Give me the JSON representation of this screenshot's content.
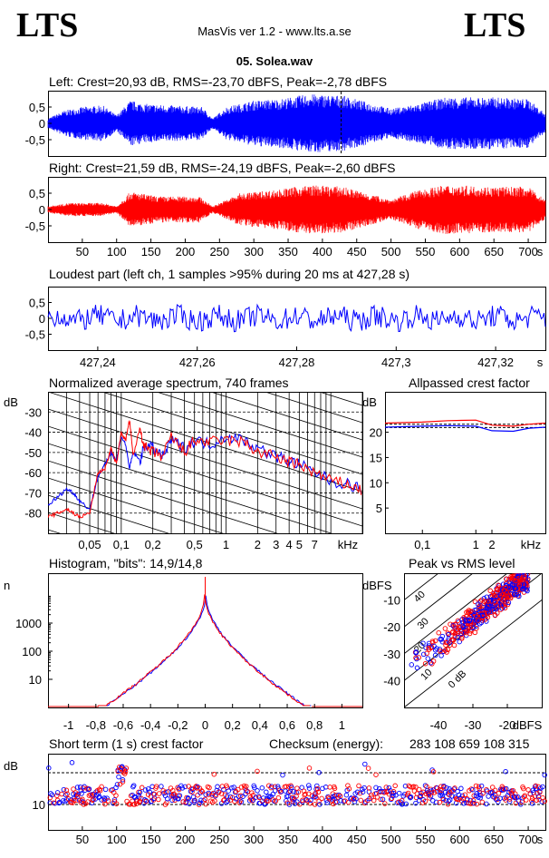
{
  "header": {
    "logo_left": "LTS",
    "logo_right": "LTS",
    "app_title": "MasVis ver 1.2 - www.lts.a.se",
    "file_title": "05. Solea.wav"
  },
  "colors": {
    "left": "#0000ff",
    "right": "#ff0000"
  },
  "chart_data": [
    {
      "id": "left",
      "type": "line",
      "title": "Left: Crest=20,93 dB, RMS=-23,70 dBFS, Peak=-2,78 dBFS",
      "ylim": [
        -1,
        1
      ],
      "yticks": [
        "0,5",
        "0",
        "-0,5"
      ],
      "ytick_values": [
        0.5,
        0,
        -0.5
      ],
      "x_range_s": [
        0,
        725
      ],
      "marker_s": 427.28,
      "envelope": [
        {
          "t": 0,
          "a": 0.15
        },
        {
          "t": 25,
          "a": 0.4
        },
        {
          "t": 50,
          "a": 0.5
        },
        {
          "t": 80,
          "a": 0.55
        },
        {
          "t": 100,
          "a": 0.25
        },
        {
          "t": 120,
          "a": 0.7
        },
        {
          "t": 140,
          "a": 0.6
        },
        {
          "t": 180,
          "a": 0.55
        },
        {
          "t": 225,
          "a": 0.5
        },
        {
          "t": 240,
          "a": 0.15
        },
        {
          "t": 260,
          "a": 0.5
        },
        {
          "t": 300,
          "a": 0.7
        },
        {
          "t": 340,
          "a": 0.75
        },
        {
          "t": 380,
          "a": 0.9
        },
        {
          "t": 430,
          "a": 0.85
        },
        {
          "t": 500,
          "a": 0.45
        },
        {
          "t": 540,
          "a": 0.6
        },
        {
          "t": 580,
          "a": 0.8
        },
        {
          "t": 650,
          "a": 0.8
        },
        {
          "t": 700,
          "a": 0.75
        },
        {
          "t": 725,
          "a": 0.3
        }
      ]
    },
    {
      "id": "right",
      "type": "line",
      "title": "Right: Crest=21,59 dB, RMS=-24,19 dBFS, Peak=-2,60 dBFS",
      "ylim": [
        -1,
        1
      ],
      "yticks": [
        "0,5",
        "0",
        "-0,5"
      ],
      "ytick_values": [
        0.5,
        0,
        -0.5
      ],
      "x_range_s": [
        0,
        725
      ],
      "xticks": [
        50,
        100,
        150,
        200,
        250,
        300,
        350,
        400,
        450,
        500,
        550,
        600,
        650,
        700
      ],
      "xtick_labels": [
        "50",
        "100",
        "150",
        "200",
        "250",
        "300",
        "350",
        "400",
        "450",
        "500",
        "550",
        "600",
        "650",
        "700"
      ],
      "x_unit": "s",
      "envelope": [
        {
          "t": 0,
          "a": 0.1
        },
        {
          "t": 30,
          "a": 0.2
        },
        {
          "t": 80,
          "a": 0.2
        },
        {
          "t": 100,
          "a": 0.1
        },
        {
          "t": 120,
          "a": 0.55
        },
        {
          "t": 160,
          "a": 0.4
        },
        {
          "t": 220,
          "a": 0.4
        },
        {
          "t": 240,
          "a": 0.1
        },
        {
          "t": 280,
          "a": 0.5
        },
        {
          "t": 330,
          "a": 0.6
        },
        {
          "t": 380,
          "a": 0.75
        },
        {
          "t": 430,
          "a": 0.7
        },
        {
          "t": 500,
          "a": 0.3
        },
        {
          "t": 540,
          "a": 0.6
        },
        {
          "t": 580,
          "a": 0.75
        },
        {
          "t": 650,
          "a": 0.7
        },
        {
          "t": 700,
          "a": 0.7
        },
        {
          "t": 725,
          "a": 0.3
        }
      ]
    },
    {
      "id": "loudest",
      "type": "line",
      "title": "Loudest part (left  ch, 1 samples >95% during 20 ms at 427,28 s)",
      "ylim": [
        -1,
        1
      ],
      "yticks": [
        "0,5",
        "0",
        "-0,5"
      ],
      "ytick_values": [
        0.5,
        0,
        -0.5
      ],
      "x_range_s": [
        427.23,
        427.33
      ],
      "xtick_labels": [
        "427,24",
        "427,26",
        "427,28",
        "427,3",
        "427,32"
      ],
      "xtick_values": [
        427.24,
        427.26,
        427.28,
        427.3,
        427.32
      ],
      "x_unit": "s",
      "amplitude": 0.35
    },
    {
      "id": "spectrum",
      "type": "line",
      "title": "Normalized average spectrum, 740 frames",
      "y_unit": "dB",
      "ylim": [
        -90,
        -20
      ],
      "yticks": [
        "-30",
        "-40",
        "-50",
        "-60",
        "-70",
        "-80"
      ],
      "ytick_values": [
        -30,
        -40,
        -50,
        -60,
        -70,
        -80
      ],
      "x_unit": "kHz",
      "xlim_khz": [
        0.02,
        20
      ],
      "xtick_labels": [
        "0,05",
        "0,1",
        "0,2",
        "0,5",
        "1",
        "2",
        "3",
        "4",
        "5",
        "7"
      ],
      "xtick_values": [
        0.05,
        0.1,
        0.2,
        0.5,
        1,
        2,
        3,
        4,
        5,
        7
      ],
      "series": [
        {
          "channel": "left",
          "points": [
            [
              0.02,
              -76
            ],
            [
              0.025,
              -72
            ],
            [
              0.03,
              -68
            ],
            [
              0.035,
              -70
            ],
            [
              0.04,
              -74
            ],
            [
              0.05,
              -78
            ],
            [
              0.06,
              -62
            ],
            [
              0.07,
              -56
            ],
            [
              0.08,
              -50
            ],
            [
              0.09,
              -54
            ],
            [
              0.1,
              -42
            ],
            [
              0.11,
              -46
            ],
            [
              0.12,
              -58
            ],
            [
              0.13,
              -50
            ],
            [
              0.15,
              -54
            ],
            [
              0.17,
              -46
            ],
            [
              0.2,
              -48
            ],
            [
              0.25,
              -52
            ],
            [
              0.3,
              -44
            ],
            [
              0.4,
              -48
            ],
            [
              0.5,
              -44
            ],
            [
              0.7,
              -46
            ],
            [
              1,
              -42
            ],
            [
              1.5,
              -44
            ],
            [
              2,
              -48
            ],
            [
              3,
              -52
            ],
            [
              4,
              -54
            ],
            [
              5,
              -56
            ],
            [
              7,
              -60
            ],
            [
              10,
              -64
            ],
            [
              15,
              -66
            ],
            [
              20,
              -68
            ]
          ]
        },
        {
          "channel": "right",
          "points": [
            [
              0.02,
              -82
            ],
            [
              0.025,
              -80
            ],
            [
              0.03,
              -78
            ],
            [
              0.035,
              -80
            ],
            [
              0.04,
              -82
            ],
            [
              0.05,
              -80
            ],
            [
              0.06,
              -60
            ],
            [
              0.07,
              -58
            ],
            [
              0.08,
              -48
            ],
            [
              0.09,
              -56
            ],
            [
              0.1,
              -40
            ],
            [
              0.11,
              -44
            ],
            [
              0.12,
              -34
            ],
            [
              0.13,
              -52
            ],
            [
              0.15,
              -38
            ],
            [
              0.17,
              -48
            ],
            [
              0.2,
              -50
            ],
            [
              0.25,
              -52
            ],
            [
              0.3,
              -42
            ],
            [
              0.4,
              -50
            ],
            [
              0.5,
              -44
            ],
            [
              0.7,
              -45
            ],
            [
              1,
              -44
            ],
            [
              1.5,
              -45
            ],
            [
              2,
              -50
            ],
            [
              3,
              -52
            ],
            [
              4,
              -55
            ],
            [
              5,
              -56
            ],
            [
              7,
              -60
            ],
            [
              10,
              -64
            ],
            [
              15,
              -66
            ],
            [
              20,
              -69
            ]
          ]
        }
      ]
    },
    {
      "id": "allpassed",
      "type": "line",
      "title": "Allpassed crest factor",
      "y_unit": "dB",
      "ylim": [
        0,
        28
      ],
      "yticks": [
        "20",
        "15",
        "10",
        "5"
      ],
      "ytick_values": [
        20,
        15,
        10,
        5
      ],
      "x_unit": "kHz",
      "xlim_khz": [
        0.02,
        20
      ],
      "xtick_labels": [
        "0,1",
        "1",
        "2"
      ],
      "xtick_values": [
        0.1,
        1,
        2
      ],
      "series": [
        {
          "channel": "left",
          "points": [
            [
              0.02,
              21.0
            ],
            [
              0.1,
              21.2
            ],
            [
              0.3,
              21.3
            ],
            [
              1,
              21.2
            ],
            [
              2,
              20.3
            ],
            [
              5,
              20.2
            ],
            [
              10,
              20.8
            ],
            [
              20,
              21.0
            ]
          ]
        },
        {
          "channel": "right",
          "points": [
            [
              0.02,
              21.8
            ],
            [
              0.1,
              22.0
            ],
            [
              0.3,
              22.3
            ],
            [
              1,
              22.4
            ],
            [
              2,
              21.4
            ],
            [
              5,
              21.2
            ],
            [
              10,
              21.6
            ],
            [
              20,
              21.8
            ]
          ]
        }
      ],
      "references": [
        {
          "channel": "left",
          "value": 20.93
        },
        {
          "channel": "right",
          "value": 21.59
        }
      ]
    },
    {
      "id": "histogram",
      "type": "line",
      "title": "Histogram, \"bits\": 14,9/14,8",
      "y_unit": "n",
      "log_y": true,
      "yticks": [
        "1000",
        "100",
        "10"
      ],
      "ytick_values": [
        1000,
        100,
        10
      ],
      "xlim": [
        -1.15,
        1.15
      ],
      "xtick_labels": [
        "-1",
        "-0,8",
        "-0,6",
        "-0,4",
        "-0,2",
        "0",
        "0,2",
        "0,4",
        "0,6",
        "0,8",
        "1"
      ],
      "xtick_values": [
        -1,
        -0.8,
        -0.6,
        -0.4,
        -0.2,
        0,
        0.2,
        0.4,
        0.6,
        0.8,
        1
      ]
    },
    {
      "id": "peak_rms",
      "type": "scatter",
      "title": "Peak vs RMS level",
      "y_unit": "dBFS",
      "x_unit": "dBFS",
      "xlim": [
        -50,
        -10
      ],
      "ylim": [
        -50,
        0
      ],
      "yticks": [
        "-10",
        "-20",
        "-30",
        "-40"
      ],
      "ytick_values": [
        -10,
        -20,
        -30,
        -40
      ],
      "xtick_labels": [
        "-40",
        "-30",
        "-20"
      ],
      "xtick_values": [
        -40,
        -30,
        -20
      ],
      "crest_lines": [
        "40",
        "30",
        "20",
        "10",
        "0 dB"
      ],
      "crest_values": [
        40,
        30,
        20,
        10,
        0
      ]
    },
    {
      "id": "short_term",
      "type": "scatter",
      "title": "Short term (1 s) crest factor",
      "checksum_label": "Checksum (energy):",
      "checksum_value": "283 108 659 108 315",
      "y_unit": "dB",
      "ylim": [
        2,
        26
      ],
      "yticks": [
        "10"
      ],
      "ytick_values": [
        10
      ],
      "ref_lines": [
        10,
        20
      ],
      "x_range_s": [
        0,
        725
      ],
      "xticks": [
        50,
        100,
        150,
        200,
        250,
        300,
        350,
        400,
        450,
        500,
        550,
        600,
        650,
        700
      ],
      "xtick_labels": [
        "50",
        "100",
        "150",
        "200",
        "250",
        "300",
        "350",
        "400",
        "450",
        "500",
        "550",
        "600",
        "650",
        "700"
      ],
      "x_unit": "s",
      "mean_db": 13
    }
  ]
}
